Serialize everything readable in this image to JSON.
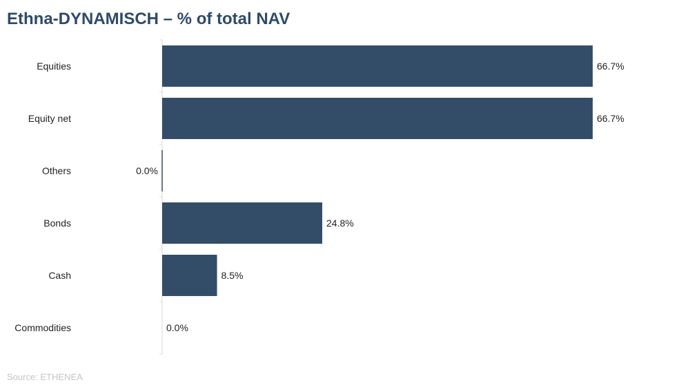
{
  "title": "Ethna-DYNAMISCH – % of total NAV",
  "source": "Source: ETHENEA",
  "colors": {
    "bar": "#334d69",
    "axis": "#d9d9d9",
    "title": "#2e4a68"
  },
  "chart_data": {
    "type": "bar",
    "orientation": "horizontal",
    "title": "Ethna-DYNAMISCH – % of total NAV",
    "categories": [
      "Equities",
      "Equity net",
      "Others",
      "Bonds",
      "Cash",
      "Commodities"
    ],
    "values": [
      66.7,
      66.7,
      0.0,
      24.8,
      8.5,
      0.0
    ],
    "data_labels": [
      "66.7%",
      "66.7%",
      "0.0%",
      "24.8%",
      "8.5%",
      "0.0%"
    ],
    "xlim": [
      0,
      66.7
    ],
    "grid": false,
    "legend": "none"
  }
}
